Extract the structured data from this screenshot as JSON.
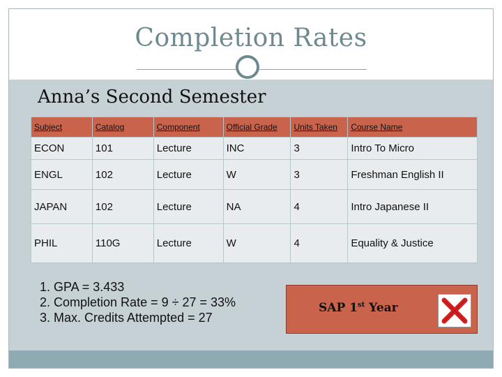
{
  "slide": {
    "title": "Completion Rates",
    "subtitle": "Anna’s Second Semester"
  },
  "table": {
    "headers": [
      "Subject",
      "Catalog",
      "Component",
      "Official Grade",
      "Units Taken",
      "Course Name"
    ],
    "rows": [
      [
        "ECON",
        "101",
        "Lecture",
        "INC",
        "3",
        "Intro To Micro"
      ],
      [
        "ENGL",
        "102",
        "Lecture",
        "W",
        "3",
        "Freshman English II"
      ],
      [
        "JAPAN",
        "102",
        "Lecture",
        "NA",
        "4",
        "Intro Japanese II"
      ],
      [
        "PHIL",
        "110G",
        "Lecture",
        "W",
        "4",
        "Equality & Justice"
      ]
    ]
  },
  "notes": [
    "1. GPA = 3.433",
    "2. Completion Rate = 9 ÷ 27 = 33%",
    "3. Max. Credits Attempted = 27"
  ],
  "sap": {
    "label_prefix": "SAP 1",
    "label_superscript": "st",
    "label_suffix": " Year",
    "status_icon": "red-x-icon"
  },
  "colors": {
    "title": "#6e8a8f",
    "header_fill": "#c9634b",
    "band": "#c6d1d6",
    "bottom_bar": "#8eabb3",
    "x_mark": "#d42020"
  }
}
